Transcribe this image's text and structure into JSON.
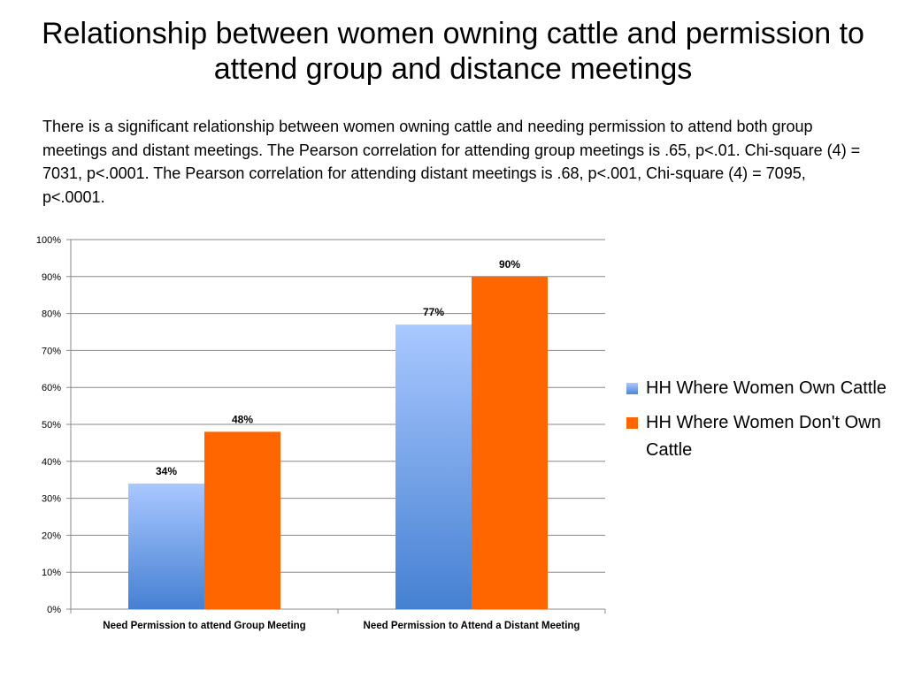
{
  "slide": {
    "title": "Relationship between women owning cattle and permission to attend group and distance meetings",
    "body": "There is a significant relationship between women owning cattle and needing permission to attend both group meetings and distant meetings.  The Pearson correlation for attending group meetings is .65, p<.01. Chi-square (4) = 7031, p<.0001.  The Pearson correlation for attending distant meetings is .68, p<.001, Chi-square (4) = 7095, p<.0001."
  },
  "chart_data": {
    "type": "bar",
    "categories": [
      "Need Permission to attend Group Meeting",
      "Need Permission to Attend a Distant Meeting"
    ],
    "series": [
      {
        "name": "HH Where Women Own Cattle",
        "values": [
          34,
          77
        ],
        "labels": [
          "34%",
          "77%"
        ],
        "color": "#4f86d3"
      },
      {
        "name": "HH Where Women Don't Own Cattle",
        "values": [
          48,
          90
        ],
        "labels": [
          "48%",
          "90%"
        ],
        "color": "#ff6600"
      }
    ],
    "title": "",
    "xlabel": "",
    "ylabel": "",
    "ylim": [
      0,
      100
    ],
    "yticks": [
      "0%",
      "10%",
      "20%",
      "30%",
      "40%",
      "50%",
      "60%",
      "70%",
      "80%",
      "90%",
      "100%"
    ],
    "grid": true,
    "legend": "right"
  }
}
